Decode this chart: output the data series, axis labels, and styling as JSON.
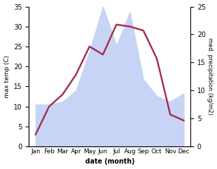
{
  "months": [
    "Jan",
    "Feb",
    "Mar",
    "Apr",
    "May",
    "Jun",
    "Jul",
    "Aug",
    "Sep",
    "Oct",
    "Nov",
    "Dec"
  ],
  "temperature": [
    3,
    10,
    13,
    18,
    25,
    23,
    30.5,
    30,
    29,
    22,
    8,
    6.5
  ],
  "precipitation": [
    7.5,
    7.5,
    8,
    10,
    17,
    25,
    18,
    24,
    12,
    9,
    8,
    9.5
  ],
  "temp_ylim": [
    0,
    35
  ],
  "precip_ylim": [
    0,
    25
  ],
  "temp_color": "#a03050",
  "precip_color": "#c8d4f5",
  "xlabel": "date (month)",
  "ylabel_left": "max temp (C)",
  "ylabel_right": "med. precipitation (kg/m2)",
  "temp_yticks": [
    0,
    5,
    10,
    15,
    20,
    25,
    30,
    35
  ],
  "precip_yticks": [
    0,
    5,
    10,
    15,
    20,
    25
  ],
  "background_color": "#ffffff",
  "scale_factor": 1.4
}
